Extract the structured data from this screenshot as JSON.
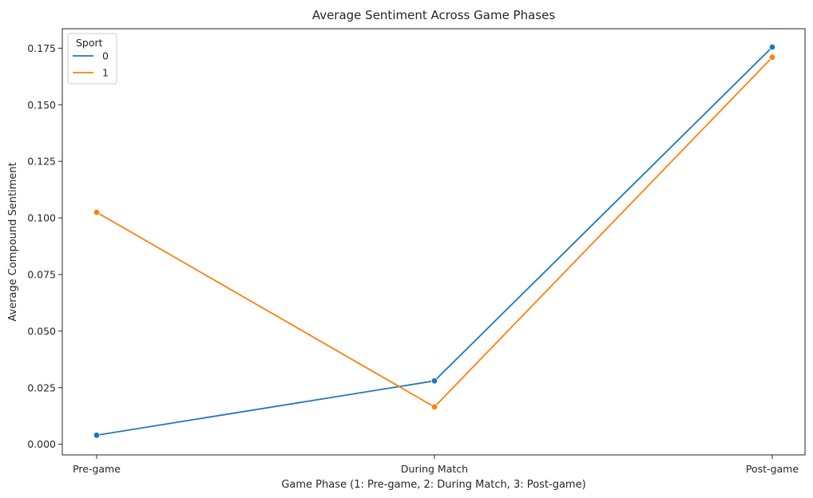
{
  "chart_data": {
    "type": "line",
    "title": "Average Sentiment Across Game Phases",
    "xlabel": "Game Phase (1: Pre-game, 2: During Match, 3: Post-game)",
    "ylabel": "Average Compound Sentiment",
    "categories": [
      "Pre-game",
      "During Match",
      "Post-game"
    ],
    "ylim": [
      -0.0047,
      0.1836
    ],
    "yticks": [
      0.0,
      0.025,
      0.05,
      0.075,
      0.1,
      0.125,
      0.15,
      0.175
    ],
    "ytick_labels": [
      "0.000",
      "0.025",
      "0.050",
      "0.075",
      "0.100",
      "0.125",
      "0.150",
      "0.175"
    ],
    "grid": false,
    "legend": {
      "title": "Sport",
      "placement": "top-left"
    },
    "series": [
      {
        "name": "0",
        "color": "#1f77b4",
        "values": [
          0.004,
          0.028,
          0.1755
        ]
      },
      {
        "name": "1",
        "color": "#ff7f0e",
        "values": [
          0.1025,
          0.0165,
          0.171
        ]
      }
    ]
  }
}
